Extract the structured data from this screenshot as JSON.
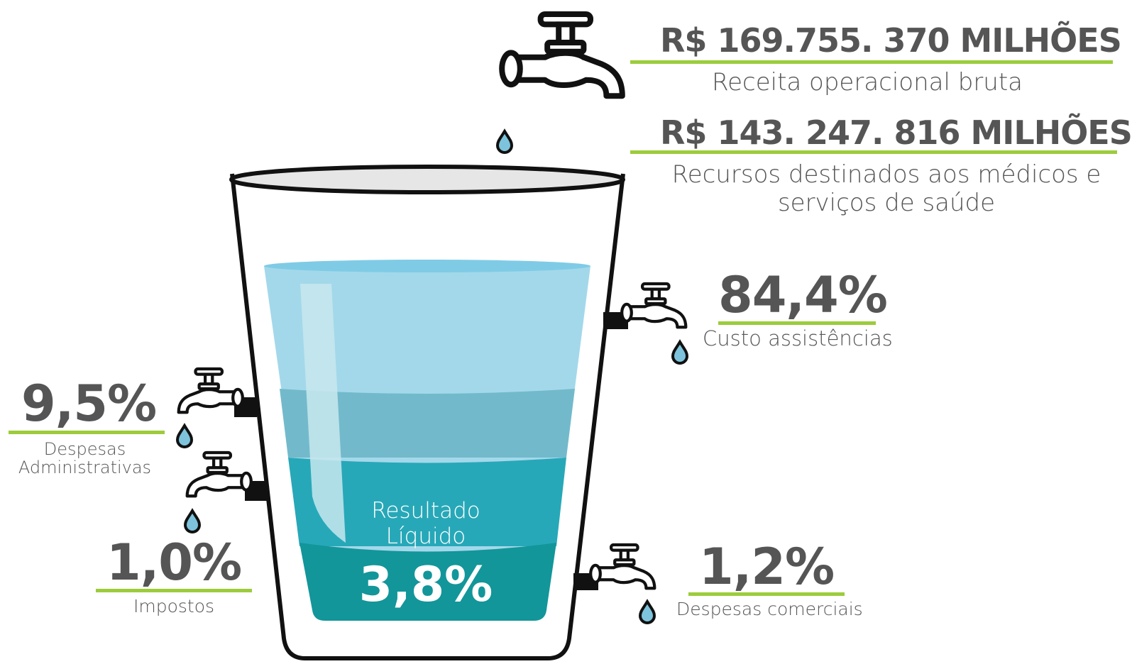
{
  "revenue": {
    "amount": "R$ 169.755. 370 MILHÕES",
    "label": "Receita operacional bruta"
  },
  "resources": {
    "amount": "R$ 143.  247. 816 MILHÕES",
    "label": "Recursos destinados aos médicos e serviços de saúde"
  },
  "items": [
    {
      "value": "84,4%",
      "label": "Custo assistências"
    },
    {
      "value": "9,5%",
      "label": "Despesas Administrativas"
    },
    {
      "value": "1,0%",
      "label": "Impostos"
    },
    {
      "value": "1,2%",
      "label": "Despesas comerciais"
    }
  ],
  "result": {
    "label": "Resultado Líquido",
    "value": "3,8%"
  }
}
